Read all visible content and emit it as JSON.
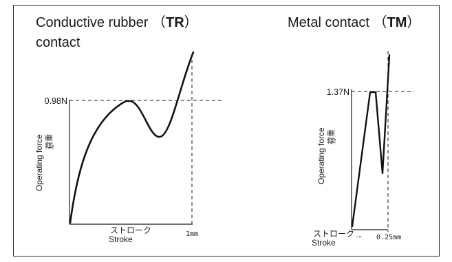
{
  "left_panel": {
    "title_text": "Conductive rubber",
    "title_code": "TR",
    "title_line2": "contact",
    "force_value": "0.98N",
    "y_label": "Operating force",
    "y_label_jp": "荷重",
    "x_label_jp": "ストローク",
    "x_label": "Stroke",
    "x_value": "1mm"
  },
  "right_panel": {
    "title_text": "Metal contact",
    "title_code": "TM",
    "force_value": "1.37N",
    "y_label": "Operating force",
    "y_label_jp": "荷重",
    "x_label_jp": "ストローク",
    "x_label": "Stroke",
    "x_value": "0.25mm"
  },
  "colors": {
    "ink": "#1a1a1a",
    "frame": "#2a2a2a"
  }
}
